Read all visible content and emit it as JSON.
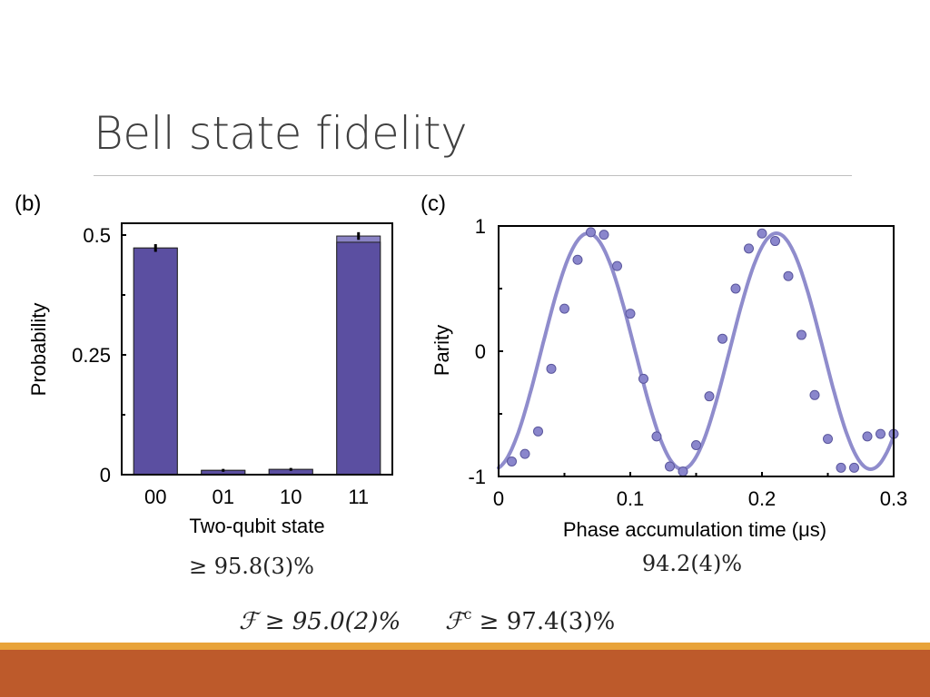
{
  "slide": {
    "title": "Bell state fidelity",
    "colors": {
      "footer_band": "#bd5a2b",
      "footer_thin": "#e8a33a",
      "bar_fill": "#5b4fa1",
      "trace": "#8f8ccc",
      "point": "#8a86cc"
    }
  },
  "chart_data": [
    {
      "type": "bar",
      "panel_label": "(b)",
      "xlabel": "Two-qubit state",
      "ylabel": "Probability",
      "categories": [
        "00",
        "01",
        "10",
        "11"
      ],
      "values": [
        0.473,
        0.009,
        0.011,
        0.498
      ],
      "overlay_values": [
        0.473,
        0.009,
        0.011,
        0.485
      ],
      "error_bars": [
        0.008,
        0.003,
        0.003,
        0.008
      ],
      "ylim": [
        0,
        0.5
      ],
      "yticks": [
        0,
        0.25,
        0.5
      ],
      "ytick_labels": [
        "0",
        "0.25",
        "0.5"
      ],
      "annotation": "≥ 95.8(3)%"
    },
    {
      "type": "line",
      "panel_label": "(c)",
      "xlabel": "Phase accumulation time (μs)",
      "ylabel": "Parity",
      "xlim": [
        0,
        0.3
      ],
      "ylim": [
        -1,
        1
      ],
      "xticks": [
        0,
        0.1,
        0.2,
        0.3
      ],
      "xtick_labels": [
        "0",
        "0.1",
        "0.2",
        "0.3"
      ],
      "yticks": [
        -1,
        0,
        1
      ],
      "ytick_labels": [
        "-1",
        "0",
        "1"
      ],
      "series": [
        {
          "kind": "points",
          "x": [
            0.01,
            0.02,
            0.03,
            0.04,
            0.05,
            0.06,
            0.07,
            0.08,
            0.09,
            0.1,
            0.11,
            0.12,
            0.13,
            0.14,
            0.15,
            0.16,
            0.17,
            0.18,
            0.19,
            0.2,
            0.21,
            0.22,
            0.23,
            0.24,
            0.25,
            0.26,
            0.27,
            0.28,
            0.29,
            0.3
          ],
          "y": [
            -0.88,
            -0.82,
            -0.64,
            -0.14,
            0.34,
            0.73,
            0.95,
            0.93,
            0.68,
            0.3,
            -0.22,
            -0.68,
            -0.92,
            -0.96,
            -0.75,
            -0.36,
            0.1,
            0.5,
            0.82,
            0.94,
            0.88,
            0.6,
            0.13,
            -0.35,
            -0.7,
            -0.93,
            -0.93,
            -0.68,
            -0.66,
            -0.66
          ]
        },
        {
          "kind": "fit",
          "model": "sine",
          "amplitude": 0.942,
          "period": 0.143,
          "phase_peak_x": 0.068
        }
      ],
      "annotation": "94.2(4)%"
    }
  ],
  "equations": {
    "fidelity": "ℱ ≥ 95.0(2)%",
    "fidelity_c_symbol": "ℱ",
    "fidelity_c_sup": "c",
    "fidelity_c_rest": " ≥ 97.4(3)%"
  }
}
